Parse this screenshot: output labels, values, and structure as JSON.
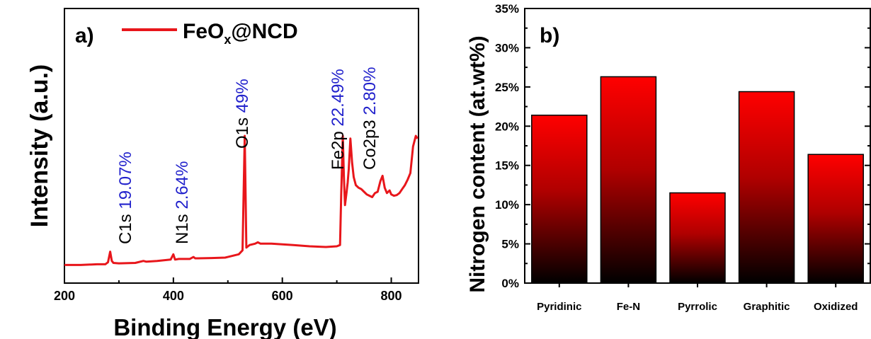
{
  "chart_data": [
    {
      "type": "line",
      "panel_label": "a)",
      "xlabel": "Binding Energy (eV)",
      "ylabel": "Intensity (a.u.)",
      "xlim": [
        200,
        850
      ],
      "x_ticks": [
        "200",
        "400",
        "600",
        "800"
      ],
      "legend": {
        "label_main": "FeO",
        "label_sub": "x",
        "label_tail": "@NCD",
        "placement": "top-left"
      },
      "series": [
        {
          "color": "#e8161b",
          "x": [
            200,
            230,
            260,
            275,
            280,
            284,
            287,
            290,
            300,
            330,
            345,
            350,
            370,
            395,
            400,
            403,
            410,
            430,
            437,
            440,
            445,
            470,
            495,
            500,
            520,
            527,
            531,
            534,
            537,
            540,
            550,
            555,
            560,
            580,
            600,
            620,
            650,
            680,
            700,
            706,
            708,
            711,
            713,
            715,
            718,
            720,
            722,
            725,
            728,
            731,
            735,
            740,
            745,
            750,
            755,
            760,
            765,
            770,
            775,
            780,
            784,
            788,
            792,
            797,
            800,
            805,
            810,
            815,
            820,
            825,
            830,
            835,
            840,
            845,
            848
          ],
          "y": [
            3,
            3,
            3.5,
            3.5,
            5,
            13,
            6,
            4.5,
            4.2,
            4.5,
            6,
            5.5,
            6,
            7,
            11,
            7,
            7.5,
            7.5,
            9,
            8,
            8,
            8.2,
            8.5,
            9,
            11,
            14,
            100,
            16,
            17,
            18,
            19,
            20,
            19,
            19,
            18.5,
            18,
            17,
            16.5,
            17,
            18,
            55,
            100,
            70,
            48,
            58,
            65,
            75,
            98,
            80,
            69,
            63,
            61,
            60,
            58,
            56,
            55,
            54,
            57,
            58,
            66,
            70,
            61,
            57,
            59,
            56,
            55,
            55.5,
            57,
            60,
            63,
            67,
            72,
            92,
            100,
            98
          ]
        }
      ],
      "annotations": [
        {
          "element": "C1s",
          "percent": "19.07%",
          "x": 284
        },
        {
          "element": "N1s",
          "percent": "2.64%",
          "x": 400
        },
        {
          "element": "O1s",
          "percent": "49%",
          "x": 531
        },
        {
          "element": "Fe2p",
          "percent": "22.49%",
          "x": 711
        },
        {
          "element": "Co2p3",
          "percent": "2.80%",
          "x": 725
        }
      ],
      "grid": false
    },
    {
      "type": "bar",
      "panel_label": "b)",
      "xlabel": "",
      "ylabel": "Nitrogen content (at.wt%)",
      "categories": [
        "Pyridinic",
        "Fe-N",
        "Pyrrolic",
        "Graphitic",
        "Oxidized"
      ],
      "values": [
        21.4,
        26.3,
        11.5,
        24.4,
        16.4
      ],
      "ylim": [
        0,
        35
      ],
      "y_ticks": [
        "0%",
        "5%",
        "10%",
        "15%",
        "20%",
        "25%",
        "30%",
        "35%"
      ],
      "colors": {
        "bar_top": "#ff0000",
        "bar_bottom": "#000000"
      },
      "grid": false
    }
  ]
}
